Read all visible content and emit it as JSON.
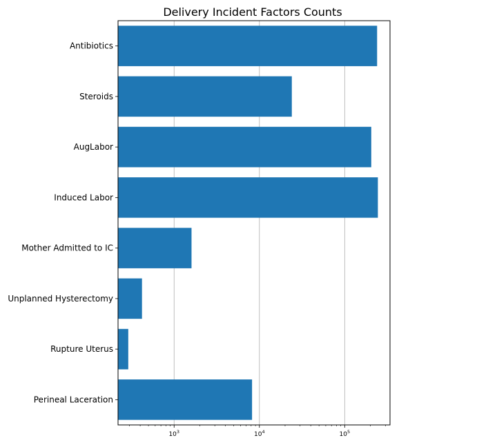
{
  "chart_data": {
    "type": "bar",
    "orientation": "horizontal",
    "title": "Delivery Incident Factors Counts",
    "xlabel": "",
    "ylabel": "",
    "x_scale": "log",
    "xlim": [
      220,
      340000
    ],
    "grid": "x",
    "bar_color": "#1f77b4",
    "categories": [
      "Antibiotics",
      "Steroids",
      "AugLabor",
      "Induced Labor",
      "Mother Admitted to IC",
      "Unplanned Hysterectomy",
      "Rupture Uterus",
      "Perineal Laceration"
    ],
    "values": [
      240000,
      24000,
      205000,
      245000,
      1600,
      420,
      290,
      8200
    ],
    "x_ticks": [
      {
        "value": 1000,
        "base": "10",
        "exp": "3"
      },
      {
        "value": 10000,
        "base": "10",
        "exp": "4"
      },
      {
        "value": 100000,
        "base": "10",
        "exp": "5"
      }
    ]
  }
}
